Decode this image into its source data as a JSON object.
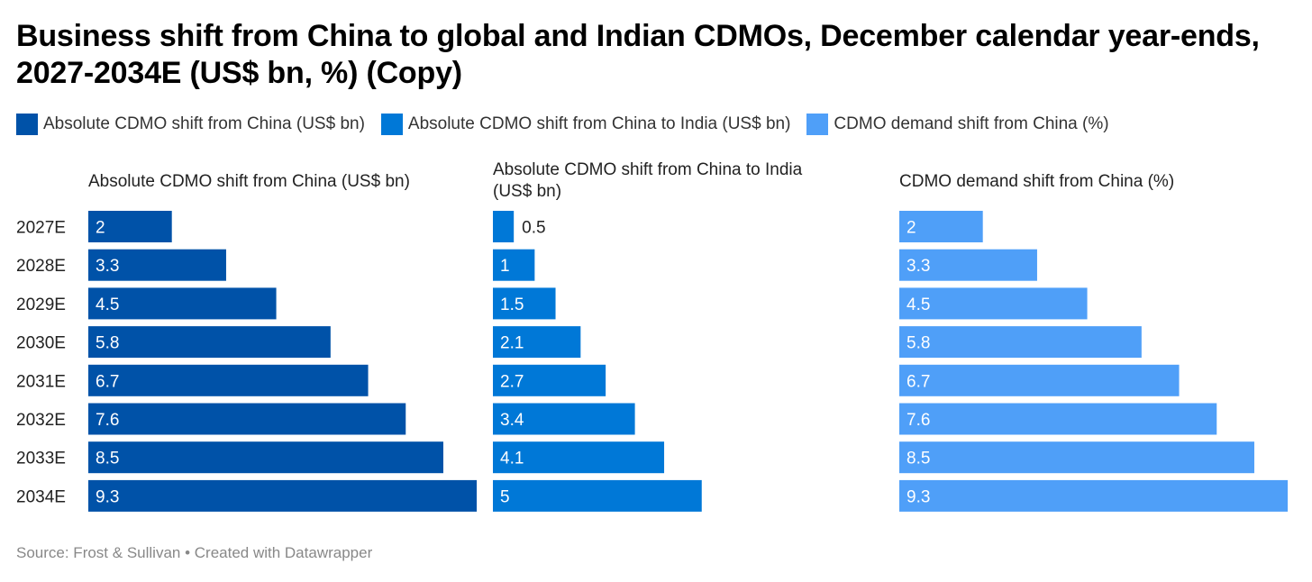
{
  "title": "Business shift from China to global and Indian CDMOs, December calendar year-ends, 2027-2034E (US$ bn, %) (Copy)",
  "source": "Source: Frost & Sullivan • Created with Datawrapper",
  "chart_data": {
    "type": "bar",
    "title": "Business shift from China to global and Indian CDMOs, December calendar year-ends, 2027-2034E (US$ bn, %) (Copy)",
    "categories": [
      "2027E",
      "2028E",
      "2029E",
      "2030E",
      "2031E",
      "2032E",
      "2033E",
      "2034E"
    ],
    "legend_placement": "top-left",
    "series": [
      {
        "name": "Absolute CDMO shift from China (US$ bn)",
        "title_lines": [
          "Absolute CDMO shift from China (US$ bn)"
        ],
        "color": "#0052a8",
        "values": [
          2,
          3.3,
          4.5,
          5.8,
          6.7,
          7.6,
          8.5,
          9.3
        ]
      },
      {
        "name": "Absolute CDMO shift from China to India (US$ bn)",
        "title_lines": [
          "Absolute CDMO shift from China to India",
          "(US$ bn)"
        ],
        "color": "#0078d7",
        "values": [
          0.5,
          1,
          1.5,
          2.1,
          2.7,
          3.4,
          4.1,
          5
        ]
      },
      {
        "name": "CDMO demand shift from China (%)",
        "title_lines": [
          "CDMO demand shift from China (%)"
        ],
        "color": "#4f9ff8",
        "values": [
          2,
          3.3,
          4.5,
          5.8,
          6.7,
          7.6,
          8.5,
          9.3
        ]
      }
    ]
  }
}
